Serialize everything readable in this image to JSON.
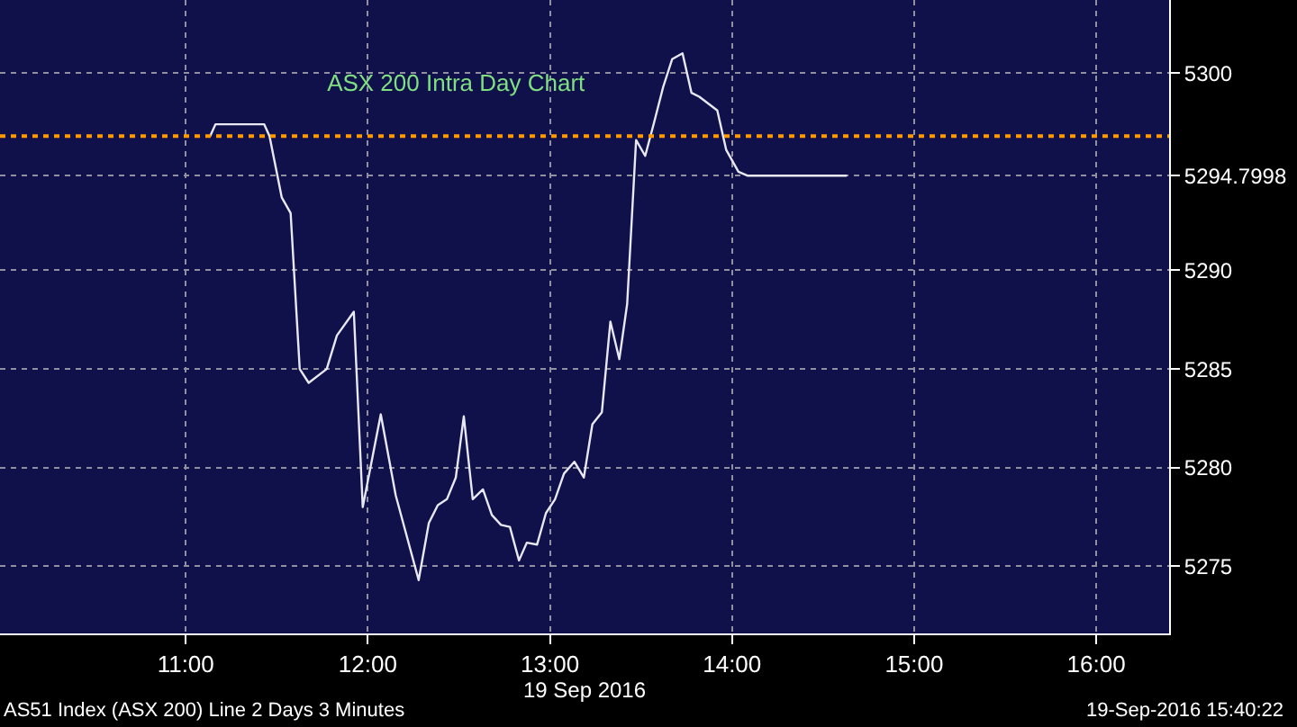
{
  "chart_data": {
    "type": "line",
    "title": "ASX 200 Intra Day Chart",
    "xlabel": "19 Sep 2016",
    "x": [
      11.134,
      11.163,
      11.431,
      11.46,
      11.527,
      11.576,
      11.626,
      11.675,
      11.774,
      11.83,
      11.923,
      11.972,
      12.071,
      12.153,
      12.279,
      12.335,
      12.384,
      12.434,
      12.483,
      12.527,
      12.576,
      12.632,
      12.681,
      12.731,
      12.78,
      12.83,
      12.873,
      12.929,
      12.978,
      13.028,
      13.077,
      13.134,
      13.186,
      13.233,
      13.285,
      13.332,
      13.381,
      13.424,
      13.473,
      13.523,
      13.572,
      13.622,
      13.671,
      13.728,
      13.777,
      13.82,
      13.919,
      13.968,
      14.035,
      14.084,
      14.626
    ],
    "series": [
      {
        "color": "#e8e8f0",
        "values": [
          5296.8,
          5297.4,
          5297.4,
          5296.8,
          5293.7,
          5292.9,
          5285.0,
          5284.3,
          5285.0,
          5286.7,
          5287.9,
          5278.0,
          5282.7,
          5278.6,
          5274.3,
          5277.2,
          5278.1,
          5278.4,
          5279.5,
          5282.6,
          5278.4,
          5278.9,
          5277.6,
          5277.1,
          5277.0,
          5275.3,
          5276.2,
          5276.1,
          5277.7,
          5278.4,
          5279.7,
          5280.3,
          5279.5,
          5282.2,
          5282.8,
          5287.4,
          5285.5,
          5288.3,
          5296.6,
          5295.8,
          5297.5,
          5299.3,
          5300.7,
          5301.0,
          5299.0,
          5298.8,
          5298.1,
          5296.1,
          5295.0,
          5294.8,
          5294.8
        ]
      }
    ],
    "xlim": [
      9.98,
      16.4
    ],
    "ylim": [
      5271.6,
      5303.7
    ],
    "xticks": [
      {
        "value": 11,
        "label": "11:00"
      },
      {
        "value": 12,
        "label": "12:00"
      },
      {
        "value": 13,
        "label": "13:00"
      },
      {
        "value": 14,
        "label": "14:00"
      },
      {
        "value": 15,
        "label": "15:00"
      },
      {
        "value": 16,
        "label": "16:00"
      }
    ],
    "yticks": [
      5275,
      5280,
      5285,
      5290,
      5294.7998,
      5300
    ],
    "ref_lines": [
      {
        "axis": "y",
        "value": 5296.8,
        "color": "#ff9900",
        "line_style": "dotted"
      }
    ],
    "annotations": [
      "AS51 Index (ASX 200) Line 2 Days 3 Minutes",
      "19-Sep-2016 15:40:22"
    ],
    "grid": true,
    "marker": "none",
    "line_style": "solid"
  }
}
